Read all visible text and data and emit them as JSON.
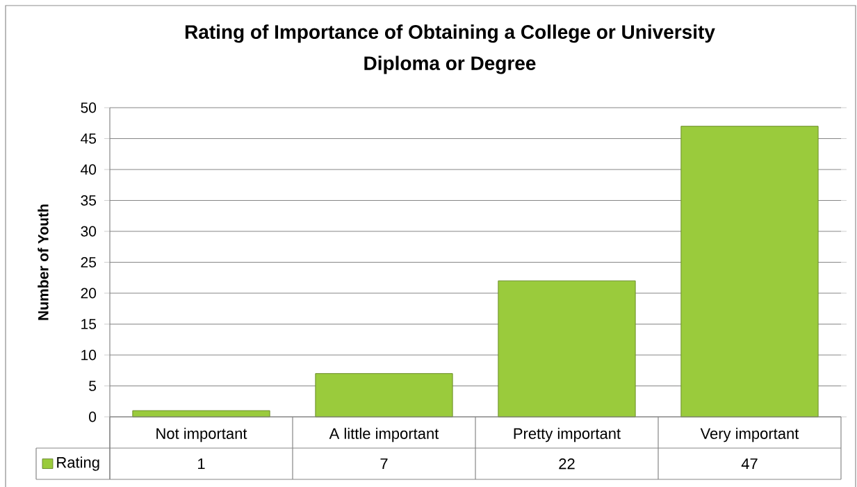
{
  "chart_data": {
    "type": "bar",
    "title": "Rating of Importance of Obtaining a College or University Diploma or Degree",
    "ylabel": "Number of Youth",
    "categories": [
      "Not important",
      "A little important",
      "Pretty important",
      "Very important"
    ],
    "series": [
      {
        "name": "Rating",
        "color": "#9acb3c",
        "values": [
          1,
          7,
          22,
          47
        ]
      }
    ],
    "ylim": [
      0,
      50
    ],
    "yticks": [
      0,
      5,
      10,
      15,
      20,
      25,
      30,
      35,
      40,
      45,
      50
    ],
    "grid": "y",
    "data_labels": true,
    "legend": "bottom"
  }
}
